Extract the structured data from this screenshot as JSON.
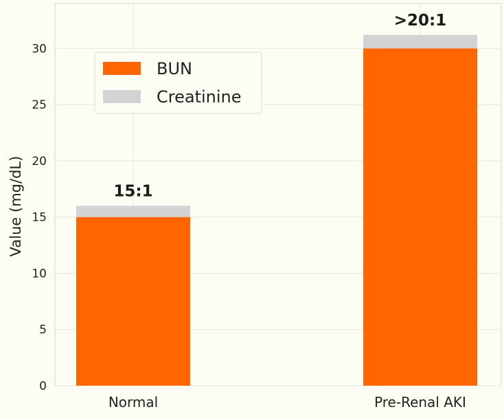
{
  "chart_data": {
    "type": "bar",
    "stacked": true,
    "title": "",
    "xlabel": "",
    "ylabel": "Value (mg/dL)",
    "ylim": [
      0,
      34
    ],
    "yticks": [
      0,
      5,
      10,
      15,
      20,
      25,
      30
    ],
    "grid": true,
    "legend_position": "upper-left",
    "categories": [
      "Normal",
      "Pre-Renal AKI"
    ],
    "series": [
      {
        "name": "BUN",
        "values": [
          15,
          30
        ],
        "color": "#ff6600"
      },
      {
        "name": "Creatinine",
        "values": [
          1,
          1.2
        ],
        "color": "#d3d3d3"
      }
    ],
    "annotations": [
      "15:1",
      ">20:1"
    ],
    "colors": {
      "background": "#fdfdf3",
      "grid": "#e6e6e0",
      "axis_text": "#222222",
      "annotation_text": "#1a1a1a"
    }
  }
}
